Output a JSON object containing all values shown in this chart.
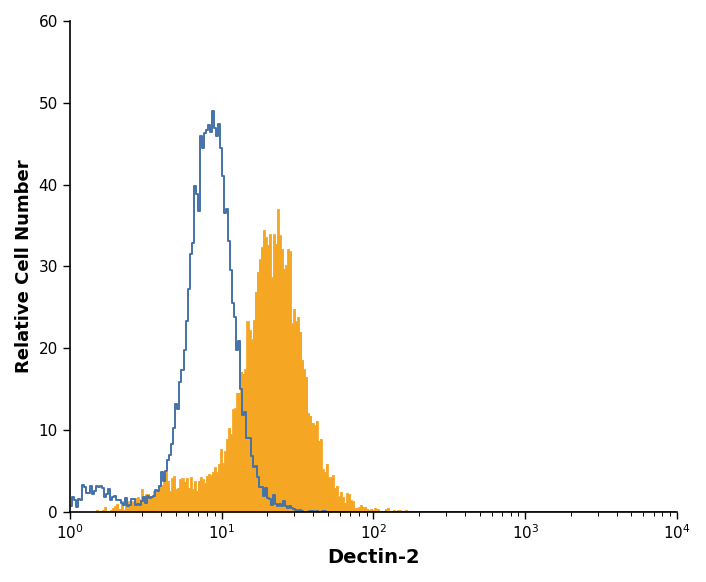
{
  "title": "",
  "xlabel": "Dectin-2",
  "ylabel": "Relative Cell Number",
  "xlim_log": [
    1,
    10000
  ],
  "ylim": [
    0,
    60
  ],
  "yticks": [
    0,
    10,
    20,
    30,
    40,
    50,
    60
  ],
  "blue_color": "#4472a8",
  "orange_color": "#f5a623",
  "background_color": "#ffffff",
  "xlabel_fontsize": 14,
  "ylabel_fontsize": 13,
  "tick_fontsize": 11
}
